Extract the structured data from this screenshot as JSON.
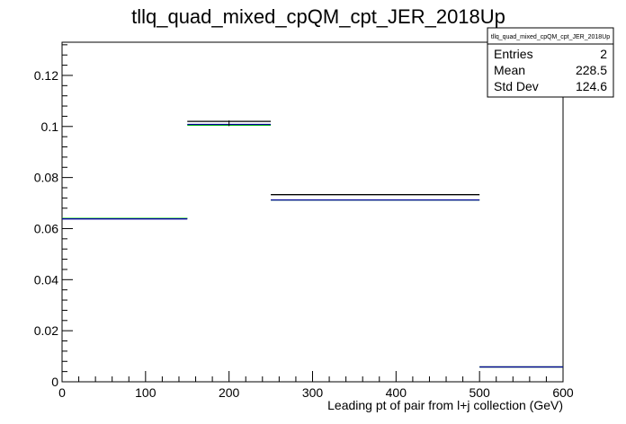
{
  "chart_data": {
    "type": "line",
    "title": "tllq_quad_mixed_cpQM_cpt_JER_2018Up",
    "xlabel": "Leading pt of pair from l+j collection (GeV)",
    "ylabel": "",
    "xlim": [
      0,
      600
    ],
    "ylim": [
      0,
      0.133
    ],
    "x_ticks": [
      "0",
      "100",
      "200",
      "300",
      "400",
      "500",
      "600"
    ],
    "y_ticks": [
      "0",
      "0.02",
      "0.04",
      "0.06",
      "0.08",
      "0.1",
      "0.12"
    ],
    "grid": false,
    "bin_edges": [
      0,
      150,
      250,
      500,
      600
    ],
    "series": [
      {
        "values": [
          0.064,
          0.102,
          0.0733,
          0.0058
        ],
        "color": "#000000"
      },
      {
        "values": [
          0.064,
          0.1005,
          0.0712,
          0.0058
        ],
        "color": "#00cc00"
      },
      {
        "values": [
          0.0638,
          0.1008,
          0.0712,
          0.0058
        ],
        "color": "#000099"
      }
    ],
    "stats": {
      "title": "tllq_quad_mixed_cpQM_cpt_JER_2018Up",
      "rows": [
        {
          "label": "Entries",
          "value": "2"
        },
        {
          "label": "Mean",
          "value": "228.5"
        },
        {
          "label": "Std Dev",
          "value": "124.6"
        }
      ]
    }
  }
}
